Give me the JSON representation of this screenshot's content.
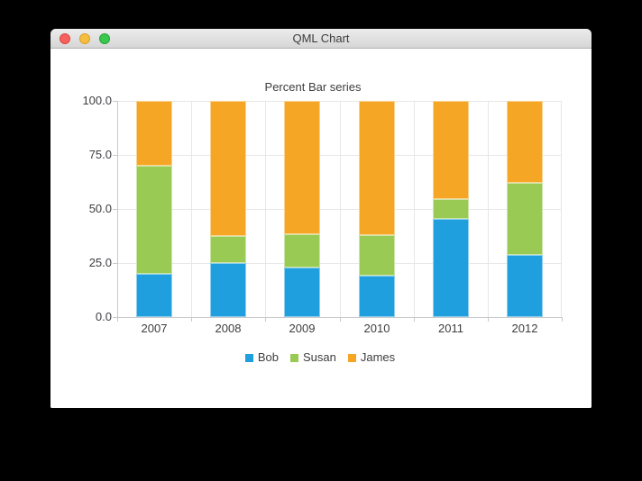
{
  "window": {
    "title": "QML Chart"
  },
  "chart_data": {
    "type": "bar",
    "variant": "percent-stacked-vertical",
    "title": "Percent Bar series",
    "categories": [
      "2007",
      "2008",
      "2009",
      "2010",
      "2011",
      "2012"
    ],
    "series": [
      {
        "name": "Bob",
        "color": "#209fdf",
        "percent_values": [
          20.0,
          25.0,
          23.08,
          19.05,
          45.45,
          28.57
        ]
      },
      {
        "name": "Susan",
        "color": "#99ca53",
        "percent_values": [
          50.0,
          12.5,
          15.38,
          19.05,
          9.09,
          33.33
        ]
      },
      {
        "name": "James",
        "color": "#f6a625",
        "percent_values": [
          30.0,
          62.5,
          61.54,
          61.9,
          45.45,
          38.1
        ]
      }
    ],
    "y_axis": {
      "tick_labels": [
        "100.0",
        "75.0",
        "50.0",
        "25.0",
        "0.0"
      ],
      "range": [
        0,
        100
      ]
    },
    "x_axis": {
      "tick_labels": [
        "2007",
        "2008",
        "2009",
        "2010",
        "2011",
        "2012"
      ]
    },
    "legend_position": "bottom",
    "grid": true
  },
  "colors": {
    "grid_line": "#e7e7e7",
    "axis_line": "#c9c9c9",
    "label_text": "#3d3d40",
    "traffic_red": "#f5615c",
    "traffic_yellow": "#f6be40",
    "traffic_green": "#39c74e"
  }
}
